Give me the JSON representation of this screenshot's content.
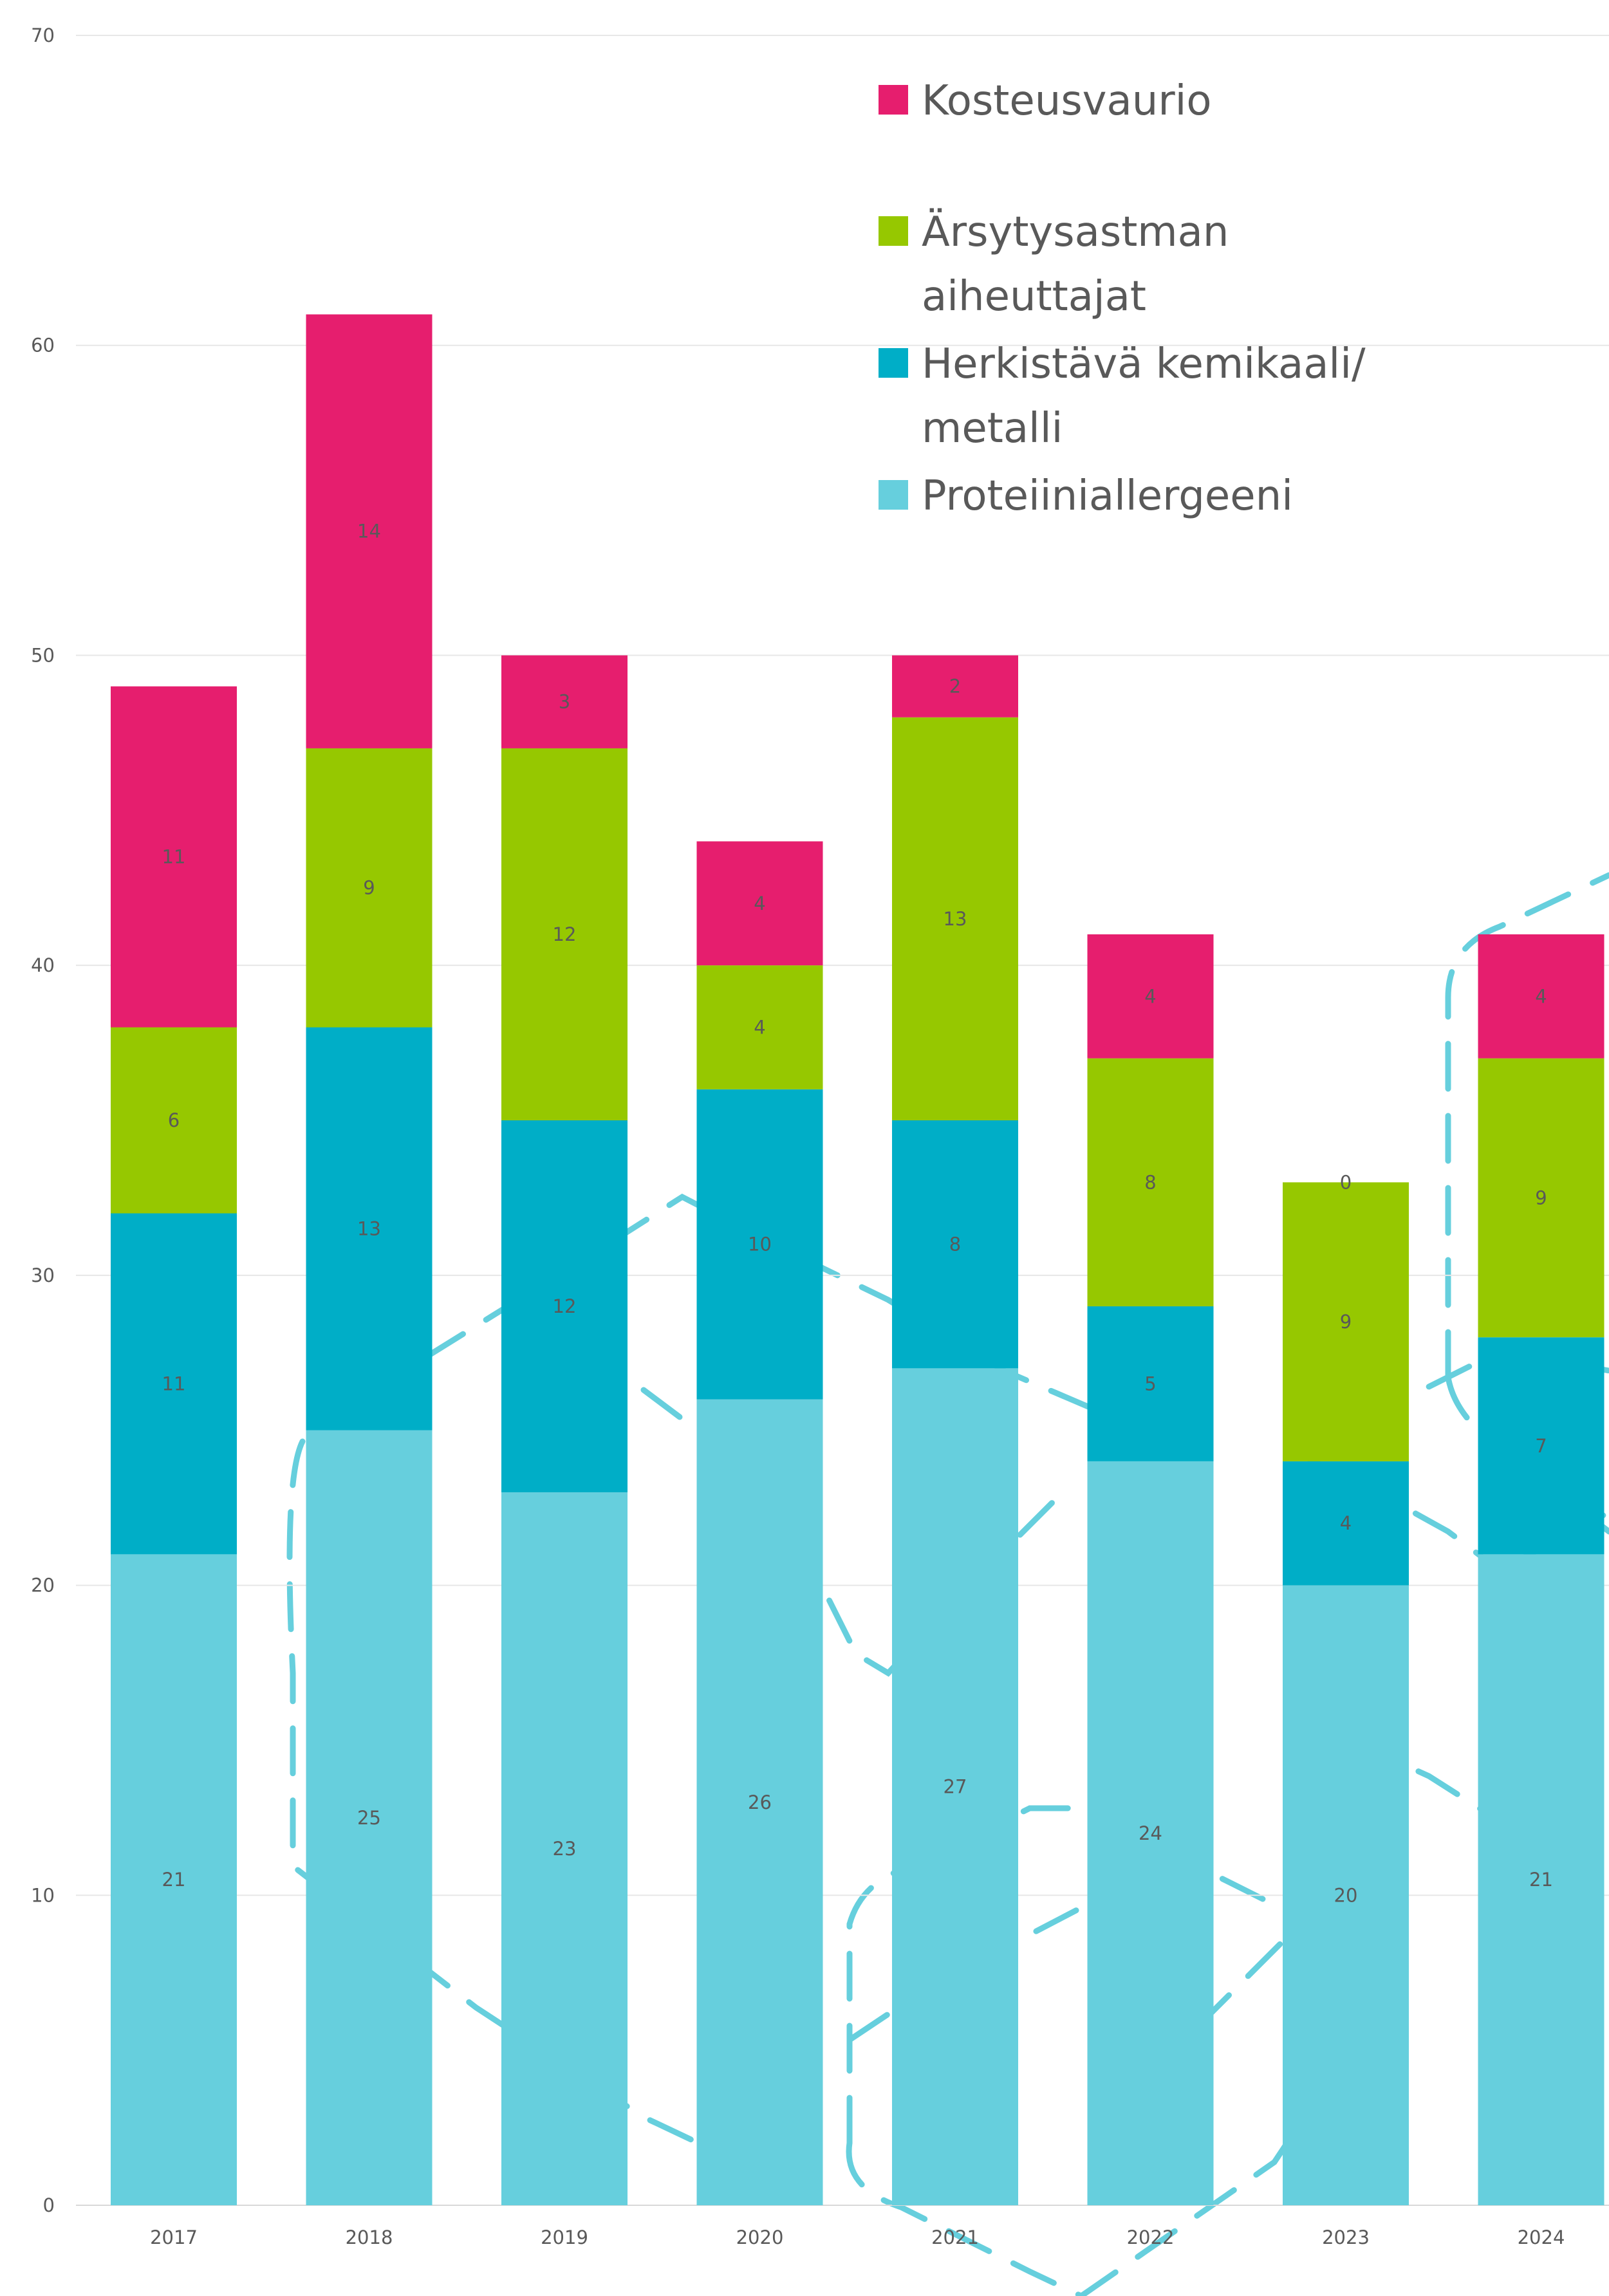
{
  "chart_data": {
    "type": "bar",
    "stacked": true,
    "categories": [
      "2017",
      "2018",
      "2019",
      "2020",
      "2021",
      "2022",
      "2023",
      "2024"
    ],
    "series": [
      {
        "name": "Proteiiniallergeeni",
        "color": "#66cfdd",
        "values": [
          21,
          25,
          23,
          26,
          27,
          24,
          20,
          21
        ]
      },
      {
        "name": "Herkistävä kemikaali/ metalli",
        "color": "#00aec7",
        "values": [
          11,
          13,
          12,
          10,
          8,
          5,
          4,
          7
        ]
      },
      {
        "name": "Ärsytysastman aiheuttajat",
        "color": "#96c800",
        "values": [
          6,
          9,
          12,
          4,
          13,
          8,
          9,
          9
        ]
      },
      {
        "name": "Kosteusvaurio",
        "color": "#e61e6e",
        "values": [
          11,
          14,
          3,
          4,
          2,
          4,
          0,
          4
        ]
      }
    ],
    "legend_order": [
      "Kosteusvaurio",
      "Ärsytysastman aiheuttajat",
      "Herkistävä kemikaali/ metalli",
      "Proteiiniallergeeni"
    ],
    "legend_lines": {
      "Kosteusvaurio": [
        "Kosteusvaurio"
      ],
      "Ärsytysastman aiheuttajat": [
        "Ärsytysastman",
        "aiheuttajat"
      ],
      "Herkistävä kemikaali/ metalli": [
        "Herkistävä kemikaali/",
        "metalli"
      ],
      "Proteiiniallergeeni": [
        "Proteiiniallergeeni"
      ]
    },
    "yticks": [
      "0",
      "10",
      "20",
      "30",
      "40",
      "50",
      "60",
      "70"
    ],
    "ylim": [
      0,
      70
    ],
    "grid": true,
    "legend_position": "top-right",
    "title": "",
    "xlabel": "",
    "ylabel": ""
  },
  "decoration_color": "#66cfdd"
}
